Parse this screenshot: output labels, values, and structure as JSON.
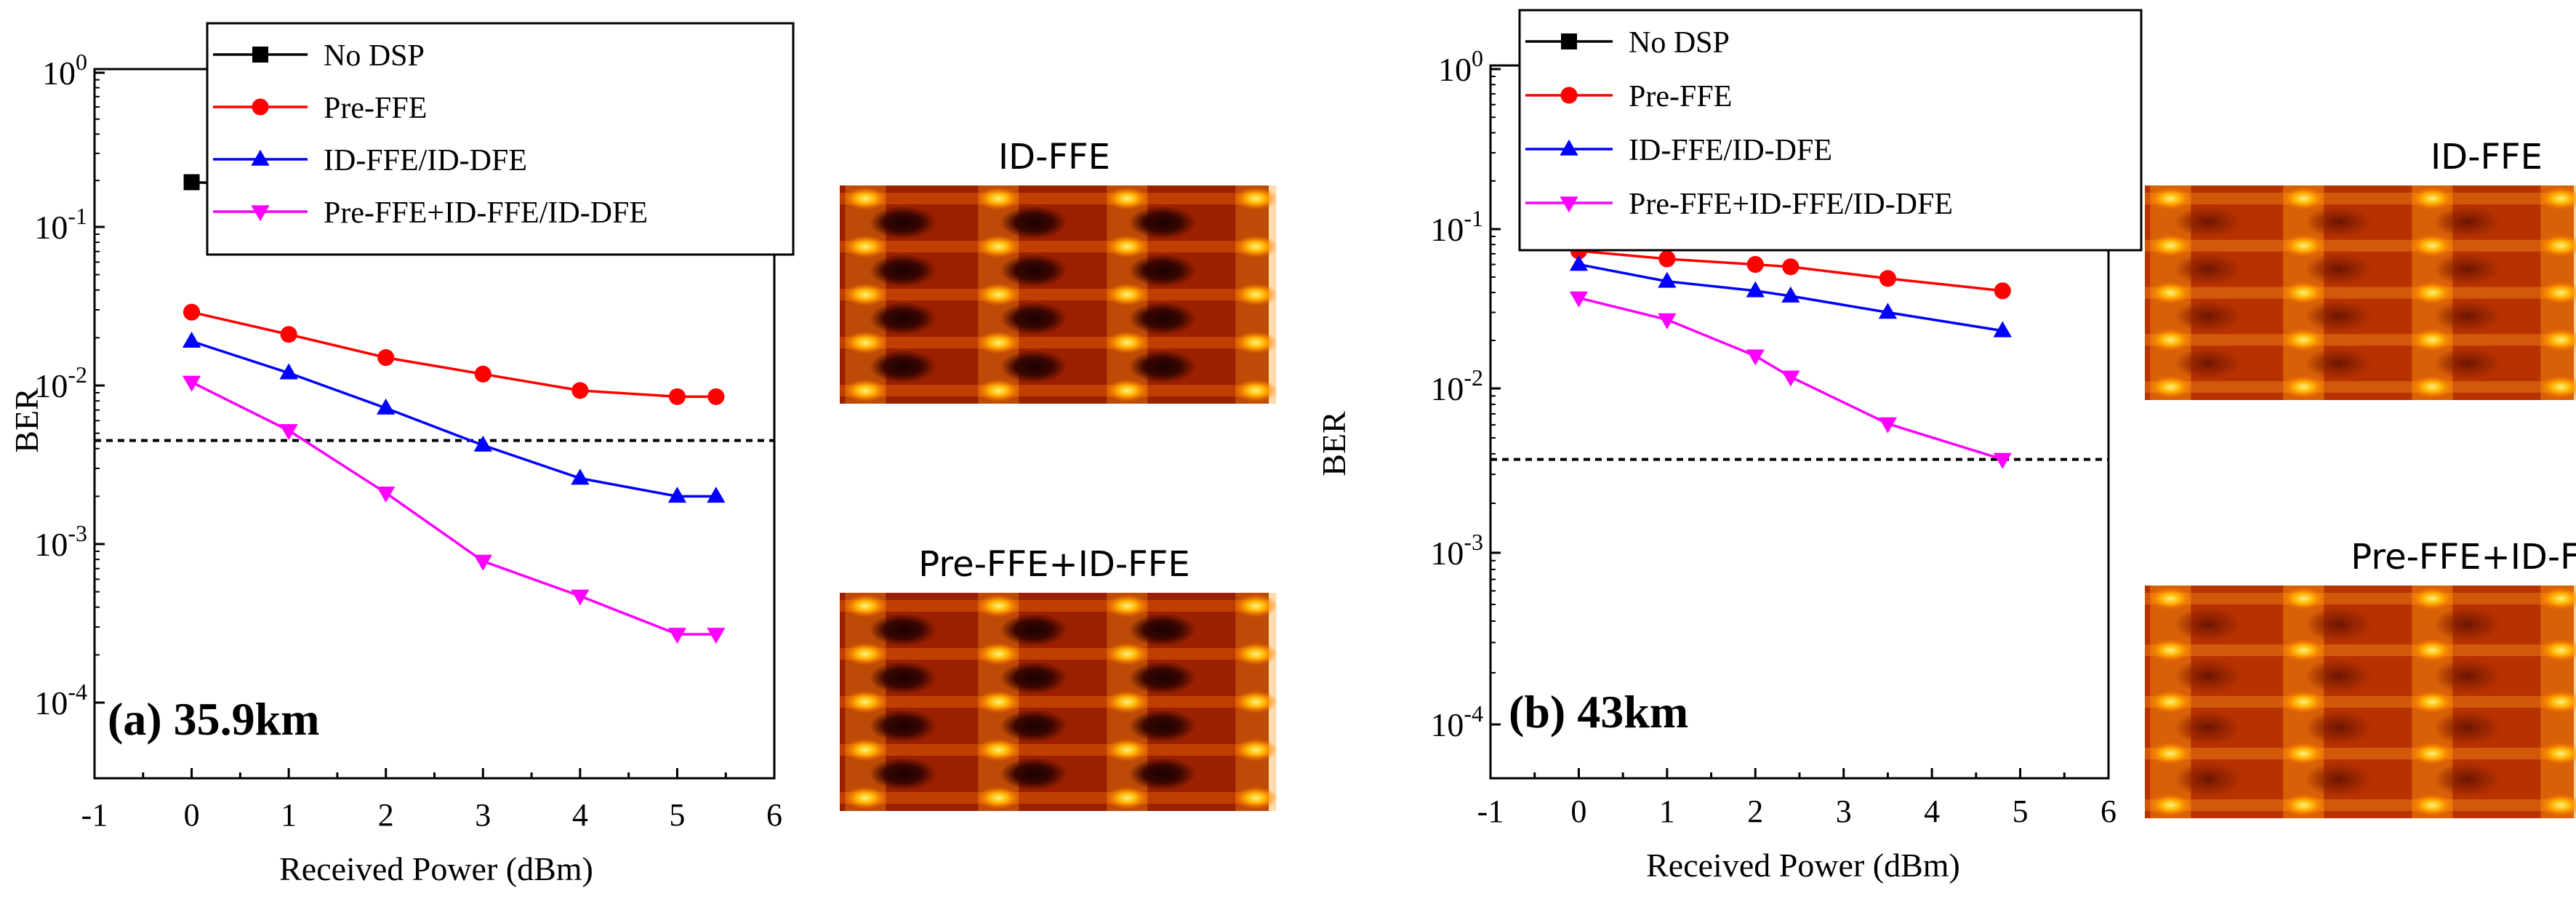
{
  "chart_data": [
    {
      "type": "line",
      "panel_label": "(a) 35.9km",
      "xlabel": "Received Power (dBm)",
      "ylabel": "BER",
      "xlim": [
        -1,
        6
      ],
      "ylim": [
        0.0001,
        1
      ],
      "yscale": "log",
      "xticks": [
        "-1",
        "0",
        "1",
        "2",
        "3",
        "4",
        "5",
        "6"
      ],
      "yticks": [
        {
          "base": "10",
          "exp": "0"
        },
        {
          "base": "10",
          "exp": "-1"
        },
        {
          "base": "10",
          "exp": "-2"
        },
        {
          "base": "10",
          "exp": "-3"
        },
        {
          "base": "10",
          "exp": "-4"
        }
      ],
      "threshold": 0.0045,
      "legend_position": "top-left",
      "series": [
        {
          "name": "No DSP",
          "color": "#000000",
          "marker": "square",
          "x": [
            0,
            1,
            2,
            3,
            4,
            5,
            5.4
          ],
          "y": [
            0.195,
            0.185,
            0.185,
            0.185,
            0.185,
            0.185,
            0.185
          ]
        },
        {
          "name": "Pre-FFE",
          "color": "#ff0000",
          "marker": "circle",
          "x": [
            0,
            1,
            2,
            3,
            4,
            5,
            5.4
          ],
          "y": [
            0.029,
            0.021,
            0.015,
            0.0118,
            0.0093,
            0.0085,
            0.0085
          ]
        },
        {
          "name": "ID-FFE/ID-DFE",
          "color": "#0000ff",
          "marker": "triangle-up",
          "x": [
            0,
            1,
            2,
            3,
            4,
            5,
            5.4
          ],
          "y": [
            0.019,
            0.012,
            0.0072,
            0.0042,
            0.0026,
            0.002,
            0.002
          ]
        },
        {
          "name": "Pre-FFE+ID-FFE/ID-DFE",
          "color": "#ff00ff",
          "marker": "triangle-down",
          "x": [
            0,
            1,
            2,
            3,
            4,
            5,
            5.4
          ],
          "y": [
            0.0105,
            0.0052,
            0.0021,
            0.00078,
            0.00047,
            0.00027,
            0.00027
          ]
        }
      ]
    },
    {
      "type": "line",
      "panel_label": "(b) 43km",
      "xlabel": "Received Power (dBm)",
      "ylabel": "BER",
      "xlim": [
        -1,
        6
      ],
      "ylim": [
        0.0001,
        1
      ],
      "yscale": "log",
      "xticks": [
        "-1",
        "0",
        "1",
        "2",
        "3",
        "4",
        "5",
        "6"
      ],
      "yticks": [
        {
          "base": "10",
          "exp": "0"
        },
        {
          "base": "10",
          "exp": "-1"
        },
        {
          "base": "10",
          "exp": "-2"
        },
        {
          "base": "10",
          "exp": "-3"
        },
        {
          "base": "10",
          "exp": "-4"
        }
      ],
      "threshold": 0.0037,
      "legend_position": "top-left",
      "series": [
        {
          "name": "No DSP",
          "color": "#000000",
          "marker": "square",
          "x": [
            0,
            1,
            2,
            2.4,
            3.5,
            4.8
          ],
          "y": [
            0.22,
            0.22,
            0.22,
            0.22,
            0.22,
            0.22
          ]
        },
        {
          "name": "Pre-FFE",
          "color": "#ff0000",
          "marker": "circle",
          "x": [
            0,
            1,
            2,
            2.4,
            3.5,
            4.8
          ],
          "y": [
            0.073,
            0.065,
            0.06,
            0.058,
            0.049,
            0.041
          ]
        },
        {
          "name": "ID-FFE/ID-DFE",
          "color": "#0000ff",
          "marker": "triangle-up",
          "x": [
            0,
            1,
            2,
            2.4,
            3.5,
            4.8
          ],
          "y": [
            0.06,
            0.047,
            0.041,
            0.038,
            0.03,
            0.023
          ]
        },
        {
          "name": "Pre-FFE+ID-FFE/ID-DFE",
          "color": "#ff00ff",
          "marker": "triangle-down",
          "x": [
            0,
            1,
            2,
            2.4,
            3.5,
            4.8
          ],
          "y": [
            0.037,
            0.027,
            0.016,
            0.0118,
            0.0061,
            0.0037
          ]
        }
      ]
    }
  ],
  "eye_diagrams": [
    {
      "title": "ID-FFE",
      "panel": "a"
    },
    {
      "title": "Pre-FFE+ID-FFE",
      "panel": "a"
    },
    {
      "title": "ID-FFE",
      "panel": "b"
    },
    {
      "title": "Pre-FFE+ID-FFE",
      "panel": "b"
    }
  ]
}
